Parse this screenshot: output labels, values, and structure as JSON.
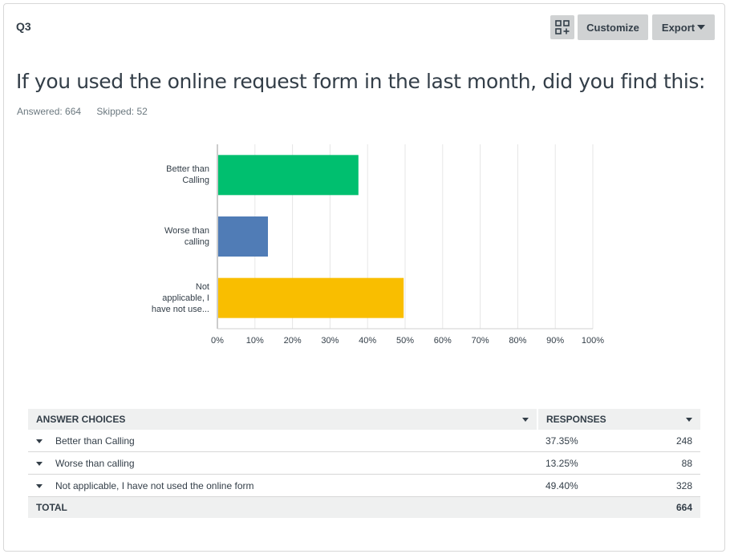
{
  "question": {
    "number": "Q3",
    "title": "If you used the online request form in the last month, did you find this:",
    "answered_label": "Answered: 664",
    "skipped_label": "Skipped: 52"
  },
  "toolbar": {
    "layout_icon": "grid-plus-icon",
    "customize_label": "Customize",
    "export_label": "Export"
  },
  "chart_data": {
    "type": "bar",
    "orientation": "horizontal",
    "categories": [
      [
        "Better than",
        "Calling"
      ],
      [
        "Worse than",
        "calling"
      ],
      [
        "Not",
        "applicable, I",
        "have not use..."
      ]
    ],
    "values": [
      37.35,
      13.25,
      49.4
    ],
    "colors": [
      "#00bf6f",
      "#507cb6",
      "#f9be00"
    ],
    "xlim": [
      0,
      100
    ],
    "x_ticks": [
      "0%",
      "10%",
      "20%",
      "30%",
      "40%",
      "50%",
      "60%",
      "70%",
      "80%",
      "90%",
      "100%"
    ],
    "grid": true
  },
  "table": {
    "header_choices": "ANSWER CHOICES",
    "header_responses": "RESPONSES",
    "rows": [
      {
        "choice": "Better than Calling",
        "percent": "37.35%",
        "count": "248"
      },
      {
        "choice": "Worse than calling",
        "percent": "13.25%",
        "count": "88"
      },
      {
        "choice": "Not applicable, I have not used the online form",
        "percent": "49.40%",
        "count": "328"
      }
    ],
    "total_label": "TOTAL",
    "total_count": "664"
  }
}
